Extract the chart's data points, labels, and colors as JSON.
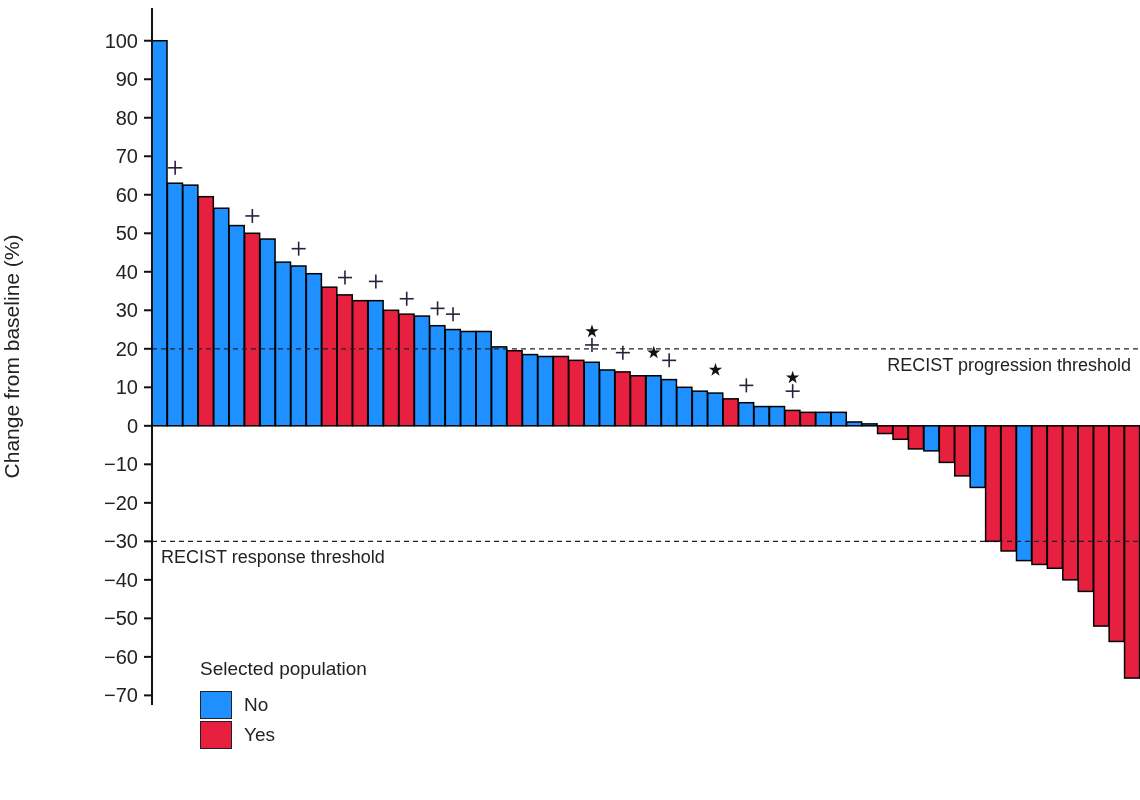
{
  "chart_data": {
    "type": "bar",
    "ylabel": "Change from baseline (%)",
    "legend_title": "Selected population",
    "legend": "bottom left",
    "stacked": true,
    "categories": [
      null,
      null,
      null,
      null,
      null,
      null,
      null,
      null,
      null,
      null,
      null,
      null,
      null,
      null,
      null,
      null,
      null,
      null,
      null,
      null,
      null,
      null,
      null,
      null,
      null,
      null,
      null,
      null,
      null,
      null,
      null,
      null,
      null,
      null,
      null,
      null,
      null,
      null,
      null,
      null,
      null,
      null,
      null,
      null,
      null,
      null,
      null,
      null,
      null,
      null,
      null,
      null,
      null,
      null,
      null,
      null,
      null,
      null,
      null,
      null,
      null,
      null,
      null,
      null
    ],
    "series": [
      {
        "name": "No",
        "color": "#1e90ff",
        "values": [
          100,
          63,
          62.5,
          null,
          56.5,
          52,
          null,
          48.5,
          42.5,
          41.5,
          39.5,
          null,
          null,
          null,
          32.5,
          null,
          null,
          28.5,
          26,
          25,
          24.5,
          24.5,
          20.5,
          null,
          18.5,
          18,
          null,
          null,
          16.5,
          14.5,
          null,
          null,
          13,
          12,
          10,
          9,
          8.5,
          null,
          6,
          5,
          5,
          null,
          null,
          3.5,
          3.5,
          1,
          0.5,
          null,
          null,
          null,
          -6.5,
          null,
          null,
          -16,
          null,
          null,
          -35,
          null,
          null,
          null,
          null,
          null,
          null,
          null
        ]
      },
      {
        "name": "Yes",
        "color": "#e8203f",
        "values": [
          null,
          null,
          null,
          59.5,
          null,
          null,
          50,
          null,
          null,
          null,
          null,
          36,
          34,
          32.5,
          null,
          30,
          29,
          null,
          null,
          null,
          null,
          null,
          null,
          19.5,
          null,
          null,
          18,
          17,
          null,
          null,
          14,
          13,
          null,
          null,
          null,
          null,
          null,
          7,
          null,
          null,
          null,
          4,
          3.5,
          null,
          null,
          null,
          null,
          -2,
          -3.5,
          -6,
          null,
          -9.5,
          -13,
          null,
          -30,
          -32.5,
          null,
          -36,
          -37,
          -40,
          -43,
          -52,
          -56,
          -65.5
        ]
      },
      {
        "type": "scatter",
        "marker": "cross",
        "color": "#2a1f3d",
        "values": [
          null,
          67,
          null,
          null,
          null,
          null,
          54.5,
          null,
          null,
          46,
          null,
          null,
          38.5,
          null,
          37.5,
          null,
          33,
          null,
          30.5,
          29,
          null,
          null,
          null,
          null,
          null,
          null,
          null,
          null,
          21,
          null,
          19,
          null,
          null,
          17,
          null,
          null,
          null,
          null,
          10.5,
          null,
          null,
          9,
          null,
          null,
          null,
          null,
          null,
          null,
          null,
          null,
          null,
          null,
          null,
          null,
          null,
          null,
          null,
          null,
          null,
          null,
          null,
          null,
          null,
          null
        ]
      },
      {
        "type": "scatter",
        "marker": "star",
        "color": "#111111",
        "values": [
          null,
          null,
          null,
          null,
          null,
          null,
          null,
          null,
          null,
          null,
          null,
          null,
          null,
          null,
          null,
          null,
          null,
          null,
          null,
          null,
          null,
          null,
          null,
          null,
          null,
          null,
          null,
          null,
          24.5,
          null,
          null,
          null,
          19,
          null,
          null,
          null,
          14.5,
          null,
          null,
          null,
          null,
          12.5,
          null,
          null,
          null,
          null,
          null,
          null,
          null,
          null,
          null,
          null,
          null,
          null,
          null,
          null,
          null,
          null,
          null,
          null,
          null,
          null,
          null,
          null
        ]
      }
    ],
    "ylim": [
      -72.5,
      108.5
    ],
    "yticks": [
      {
        "value": -70,
        "label": "−70"
      },
      {
        "value": -60,
        "label": "−60"
      },
      {
        "value": -50,
        "label": "−50"
      },
      {
        "value": -40,
        "label": "−40"
      },
      {
        "value": -30,
        "label": "−30"
      },
      {
        "value": -20,
        "label": "−20"
      },
      {
        "value": -10,
        "label": "−10"
      },
      0,
      10,
      20,
      30,
      40,
      50,
      60,
      70,
      80,
      90,
      100
    ],
    "ref_lines": [
      {
        "axis": "y",
        "value": 20,
        "label": "RECIST progression threshold",
        "line_style": "dashed"
      },
      {
        "axis": "y",
        "value": -30,
        "label": "RECIST response threshold",
        "line_style": "dashed"
      }
    ]
  }
}
